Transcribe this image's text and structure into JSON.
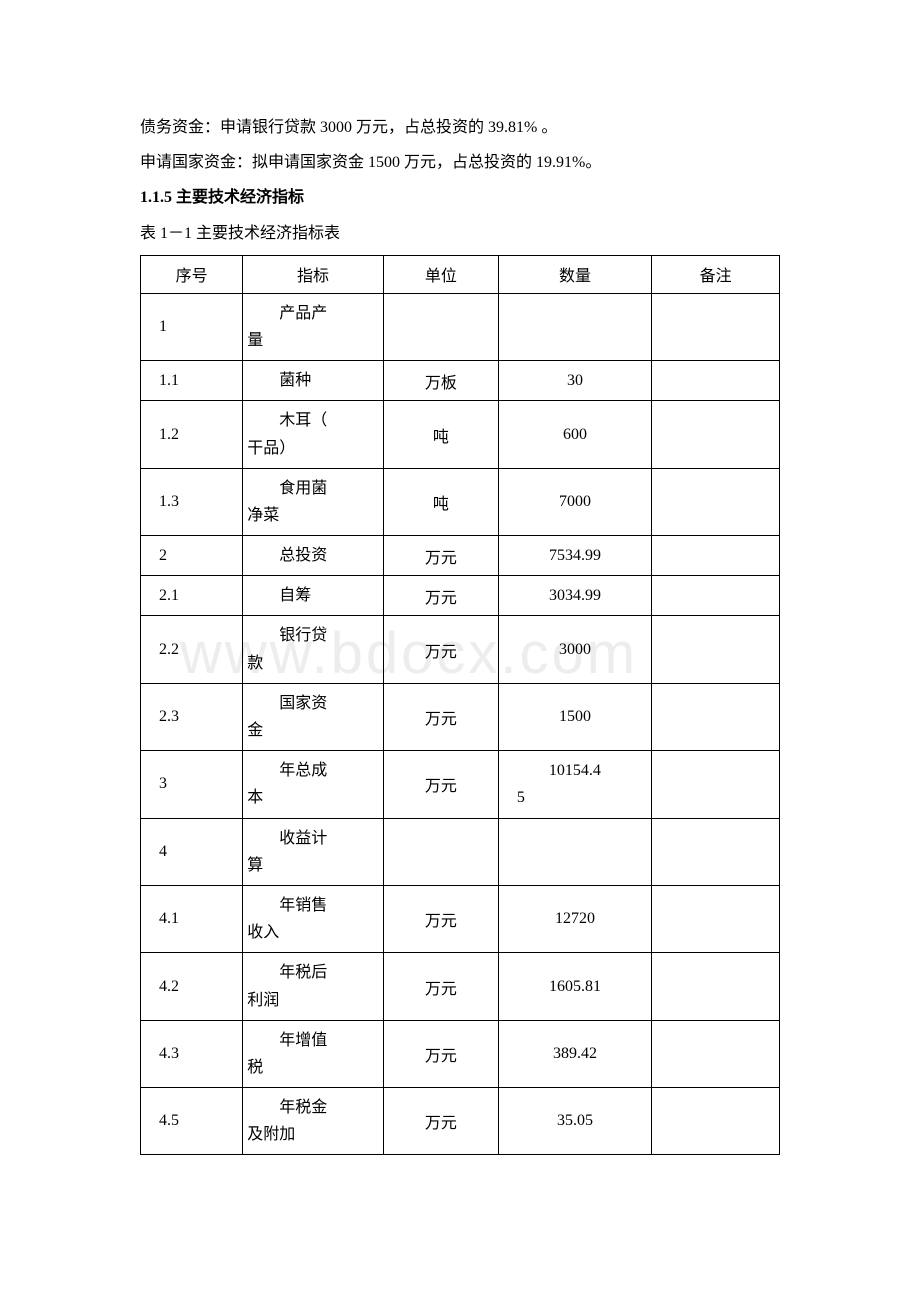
{
  "intro": {
    "line1": "债务资金：申请银行贷款 3000 万元，占总投资的 39.81% 。",
    "line2": "申请国家资金：拟申请国家资金 1500 万元，占总投资的 19.91%。"
  },
  "heading": "1.1.5 主要技术经济指标",
  "table_caption": "表 1－1 主要技术经济指标表",
  "watermark_text": "www.bdocx.com",
  "table": {
    "columns": [
      "序号",
      "指标",
      "单位",
      "数量",
      "备注"
    ],
    "col_widths": [
      "16%",
      "22%",
      "18%",
      "24%",
      "20%"
    ],
    "rows": [
      {
        "seq": "1",
        "indicator_pre": "产品产",
        "indicator_suf": "量",
        "unit": "",
        "qty": "",
        "tall": true,
        "qty_align": "center"
      },
      {
        "seq": "1.1",
        "indicator_pre": "菌种",
        "indicator_suf": "",
        "unit": "万板",
        "qty": "30",
        "tall": false,
        "qty_align": "center"
      },
      {
        "seq": "1.2",
        "indicator_pre": "木耳（",
        "indicator_suf": "干品）",
        "unit": "吨",
        "qty": "600",
        "tall": true,
        "qty_align": "center"
      },
      {
        "seq": "1.3",
        "indicator_pre": "食用菌",
        "indicator_suf": "净菜",
        "unit": "吨",
        "qty": "7000",
        "tall": true,
        "qty_align": "center"
      },
      {
        "seq": "2",
        "indicator_pre": "总投资",
        "indicator_suf": "",
        "unit": "万元",
        "qty": "7534.99",
        "tall": false,
        "qty_align": "center"
      },
      {
        "seq": "2.1",
        "indicator_pre": "自筹",
        "indicator_suf": "",
        "unit": "万元",
        "qty": "3034.99",
        "tall": false,
        "qty_align": "center"
      },
      {
        "seq": "2.2",
        "indicator_pre": "银行贷",
        "indicator_suf": "款",
        "unit": "万元",
        "qty": "3000",
        "tall": true,
        "qty_align": "center"
      },
      {
        "seq": "2.3",
        "indicator_pre": "国家资",
        "indicator_suf": "金",
        "unit": "万元",
        "qty": "1500",
        "tall": true,
        "qty_align": "center"
      },
      {
        "seq": "3",
        "indicator_pre": "年总成",
        "indicator_suf": "本",
        "unit": "万元",
        "qty": "10154.45",
        "tall": true,
        "qty_align": "left"
      },
      {
        "seq": "4",
        "indicator_pre": "收益计",
        "indicator_suf": "算",
        "unit": "",
        "qty": "",
        "tall": true,
        "qty_align": "center"
      },
      {
        "seq": "4.1",
        "indicator_pre": "年销售",
        "indicator_suf": "收入",
        "unit": "万元",
        "qty": "12720",
        "tall": true,
        "qty_align": "center"
      },
      {
        "seq": "4.2",
        "indicator_pre": "年税后",
        "indicator_suf": "利润",
        "unit": "万元",
        "qty": "1605.81",
        "tall": true,
        "qty_align": "center"
      },
      {
        "seq": "4.3",
        "indicator_pre": "年增值",
        "indicator_suf": "税",
        "unit": "万元",
        "qty": "389.42",
        "tall": true,
        "qty_align": "center"
      },
      {
        "seq": "4.5",
        "indicator_pre": "年税金",
        "indicator_suf": "及附加",
        "unit": "万元",
        "qty": "35.05",
        "tall": true,
        "qty_align": "center"
      }
    ]
  }
}
